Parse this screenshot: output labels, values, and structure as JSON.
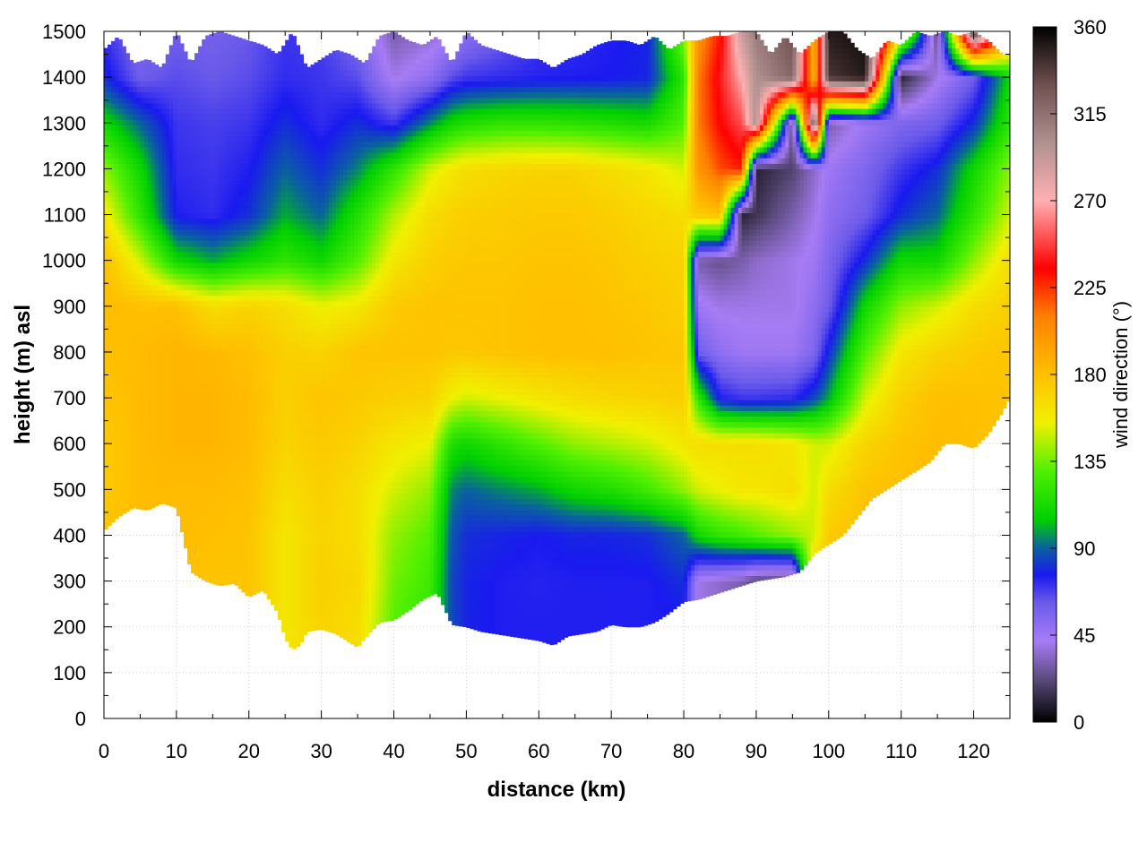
{
  "chart_data": {
    "type": "heatmap",
    "title": "",
    "xlabel": "distance (km)",
    "ylabel": "height (m) asl",
    "colorbar_label": "wind direction (°)",
    "xlim": [
      0,
      125
    ],
    "ylim": [
      0,
      1500
    ],
    "clim": [
      0,
      360
    ],
    "x_ticks": [
      0,
      10,
      20,
      30,
      40,
      50,
      60,
      70,
      80,
      90,
      100,
      110,
      120
    ],
    "y_ticks": [
      0,
      100,
      200,
      300,
      400,
      500,
      600,
      700,
      800,
      900,
      1000,
      1100,
      1200,
      1300,
      1400,
      1500
    ],
    "colorbar_ticks": [
      0,
      45,
      90,
      135,
      180,
      225,
      270,
      315,
      360
    ],
    "grid": true,
    "colormap": [
      {
        "v": 0,
        "color": "#000000"
      },
      {
        "v": 22,
        "color": "#5a4a7a"
      },
      {
        "v": 42,
        "color": "#a77cf5"
      },
      {
        "v": 62,
        "color": "#6a5aea"
      },
      {
        "v": 76,
        "color": "#1a1af0"
      },
      {
        "v": 90,
        "color": "#0a60a0"
      },
      {
        "v": 105,
        "color": "#00d000"
      },
      {
        "v": 130,
        "color": "#50f000"
      },
      {
        "v": 155,
        "color": "#f0f000"
      },
      {
        "v": 180,
        "color": "#ffc000"
      },
      {
        "v": 210,
        "color": "#ff8000"
      },
      {
        "v": 235,
        "color": "#ff0000"
      },
      {
        "v": 270,
        "color": "#ffb0b0"
      },
      {
        "v": 300,
        "color": "#b09090"
      },
      {
        "v": 330,
        "color": "#705050"
      },
      {
        "v": 360,
        "color": "#000000"
      }
    ],
    "terrain_height": {
      "x": [
        0,
        2,
        4,
        6,
        8,
        10,
        12,
        14,
        16,
        18,
        20,
        22,
        24,
        25,
        26,
        27,
        28,
        30,
        32,
        34,
        35,
        36,
        38,
        40,
        42,
        44,
        46,
        48,
        50,
        52,
        54,
        56,
        58,
        60,
        62,
        64,
        66,
        68,
        70,
        72,
        74,
        76,
        78,
        80,
        82,
        84,
        86,
        88,
        90,
        92,
        94,
        96,
        98,
        100,
        102,
        104,
        106,
        108,
        110,
        112,
        114,
        116,
        118,
        120,
        122,
        124,
        125
      ],
      "y": [
        410,
        440,
        460,
        455,
        470,
        460,
        320,
        300,
        290,
        295,
        265,
        280,
        230,
        175,
        150,
        160,
        190,
        195,
        185,
        165,
        155,
        175,
        210,
        215,
        235,
        260,
        275,
        205,
        200,
        190,
        185,
        180,
        175,
        170,
        160,
        180,
        185,
        190,
        205,
        200,
        200,
        210,
        230,
        255,
        260,
        270,
        280,
        290,
        300,
        305,
        310,
        320,
        360,
        380,
        400,
        440,
        480,
        500,
        520,
        540,
        560,
        600,
        600,
        590,
        620,
        670,
        700
      ]
    },
    "data_top": {
      "x": [
        0,
        2,
        4,
        6,
        8,
        10,
        12,
        14,
        16,
        18,
        20,
        22,
        24,
        26,
        28,
        30,
        32,
        34,
        36,
        38,
        40,
        42,
        44,
        46,
        48,
        50,
        52,
        54,
        56,
        58,
        60,
        62,
        64,
        66,
        68,
        70,
        72,
        74,
        76,
        78,
        80,
        82,
        84,
        86,
        88,
        90,
        92,
        94,
        96,
        98,
        100,
        102,
        104,
        106,
        108,
        110,
        112,
        114,
        116,
        118,
        120,
        122,
        124,
        125
      ],
      "y": [
        1460,
        1490,
        1430,
        1440,
        1420,
        1500,
        1430,
        1490,
        1500,
        1490,
        1480,
        1470,
        1450,
        1500,
        1420,
        1440,
        1460,
        1450,
        1430,
        1490,
        1500,
        1480,
        1470,
        1490,
        1430,
        1500,
        1470,
        1460,
        1450,
        1440,
        1440,
        1420,
        1440,
        1450,
        1470,
        1480,
        1480,
        1470,
        1490,
        1460,
        1480,
        1480,
        1490,
        1490,
        1500,
        1500,
        1450,
        1490,
        1450,
        1480,
        1500,
        1500,
        1460,
        1440,
        1480,
        1470,
        1500,
        1490,
        1500,
        1490,
        1500,
        1480,
        1450,
        1450
      ]
    },
    "wind_direction_field": {
      "description": "wind direction (°) sampled on distance × height grid",
      "distance_km": [
        0,
        5,
        10,
        15,
        20,
        25,
        30,
        35,
        40,
        45,
        48,
        50,
        55,
        60,
        65,
        70,
        75,
        80,
        82,
        85,
        88,
        90,
        95,
        98,
        100,
        105,
        110,
        115,
        120,
        125
      ],
      "height_m": [
        200,
        300,
        400,
        500,
        600,
        700,
        800,
        900,
        1000,
        1100,
        1200,
        1300,
        1400,
        1500
      ],
      "values": [
        [
          180,
          180,
          180,
          180,
          178,
          160,
          170,
          165,
          130,
          120,
          85,
          78,
          75,
          75,
          75,
          75,
          75,
          75,
          40,
          35,
          30,
          40,
          45,
          180,
          180,
          180,
          180,
          180,
          180,
          180
        ],
        [
          180,
          182,
          180,
          178,
          178,
          160,
          172,
          168,
          135,
          125,
          85,
          78,
          75,
          74,
          75,
          75,
          75,
          80,
          40,
          35,
          30,
          20,
          15,
          180,
          180,
          180,
          180,
          180,
          180,
          180
        ],
        [
          178,
          182,
          182,
          180,
          178,
          160,
          170,
          165,
          140,
          130,
          88,
          80,
          78,
          76,
          78,
          78,
          80,
          90,
          110,
          120,
          125,
          130,
          140,
          150,
          175,
          180,
          180,
          180,
          180,
          180
        ],
        [
          175,
          182,
          182,
          182,
          180,
          165,
          172,
          165,
          150,
          140,
          95,
          90,
          95,
          100,
          110,
          115,
          125,
          140,
          150,
          155,
          160,
          160,
          165,
          150,
          165,
          178,
          180,
          182,
          180,
          178
        ],
        [
          175,
          182,
          185,
          185,
          182,
          170,
          175,
          170,
          160,
          155,
          115,
          110,
          120,
          130,
          140,
          145,
          150,
          160,
          165,
          165,
          165,
          165,
          160,
          150,
          150,
          170,
          178,
          182,
          180,
          178
        ],
        [
          178,
          182,
          185,
          185,
          182,
          172,
          178,
          175,
          172,
          170,
          155,
          150,
          155,
          160,
          165,
          168,
          170,
          172,
          120,
          75,
          70,
          70,
          72,
          85,
          100,
          150,
          172,
          180,
          180,
          178
        ],
        [
          180,
          182,
          185,
          183,
          180,
          172,
          170,
          178,
          178,
          178,
          176,
          176,
          178,
          180,
          180,
          180,
          178,
          176,
          60,
          50,
          45,
          45,
          45,
          55,
          80,
          130,
          160,
          170,
          175,
          178
        ],
        [
          182,
          180,
          180,
          165,
          170,
          165,
          155,
          160,
          175,
          178,
          178,
          178,
          178,
          180,
          180,
          178,
          176,
          172,
          45,
          40,
          40,
          40,
          40,
          50,
          60,
          110,
          140,
          150,
          165,
          172
        ],
        [
          180,
          150,
          110,
          100,
          110,
          120,
          110,
          130,
          160,
          172,
          175,
          176,
          176,
          178,
          178,
          176,
          172,
          170,
          30,
          25,
          30,
          35,
          40,
          45,
          55,
          80,
          110,
          110,
          140,
          165
        ],
        [
          160,
          120,
          75,
          72,
          80,
          100,
          90,
          115,
          145,
          165,
          170,
          172,
          174,
          175,
          175,
          172,
          168,
          165,
          175,
          180,
          10,
          15,
          30,
          40,
          50,
          60,
          80,
          90,
          120,
          150
        ],
        [
          140,
          110,
          72,
          70,
          75,
          90,
          80,
          95,
          120,
          150,
          160,
          165,
          168,
          170,
          170,
          165,
          160,
          150,
          200,
          220,
          230,
          10,
          20,
          35,
          45,
          55,
          70,
          80,
          110,
          140
        ],
        [
          110,
          90,
          70,
          68,
          70,
          80,
          72,
          80,
          70,
          95,
          110,
          115,
          120,
          120,
          118,
          115,
          112,
          130,
          210,
          235,
          250,
          300,
          20,
          340,
          30,
          45,
          55,
          60,
          80,
          120
        ],
        [
          80,
          60,
          65,
          62,
          65,
          72,
          70,
          65,
          40,
          50,
          65,
          70,
          72,
          74,
          75,
          76,
          78,
          120,
          210,
          240,
          270,
          300,
          320,
          180,
          340,
          350,
          10,
          40,
          60,
          110
        ],
        [
          70,
          55,
          60,
          58,
          62,
          70,
          68,
          55,
          30,
          35,
          40,
          50,
          60,
          70,
          72,
          75,
          78,
          140,
          200,
          230,
          290,
          310,
          330,
          180,
          350,
          355,
          180,
          20,
          350,
          200
        ]
      ]
    }
  }
}
